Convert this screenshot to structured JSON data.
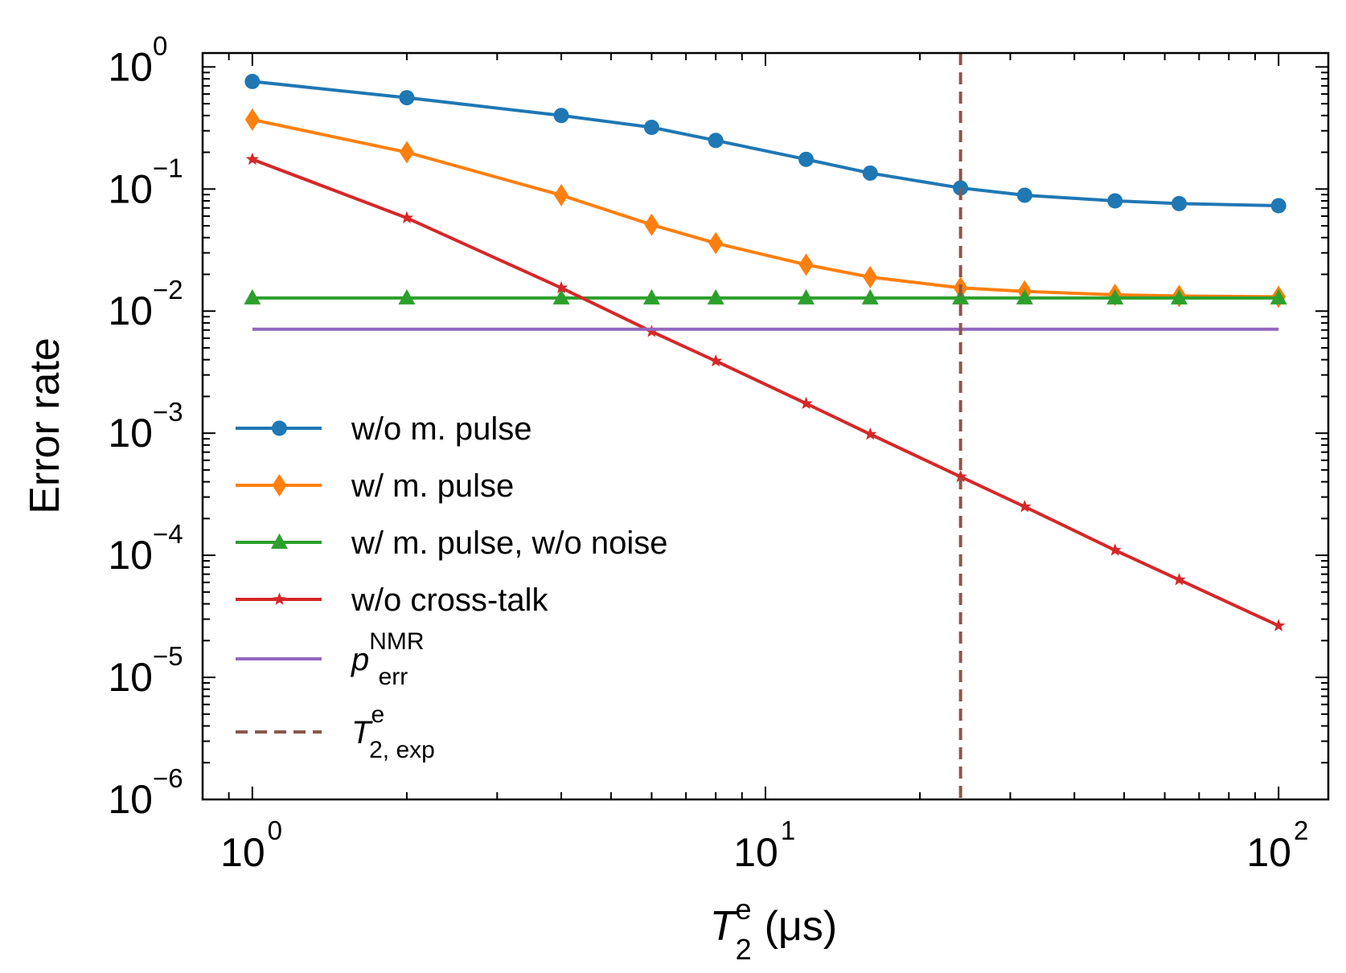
{
  "chart_data": {
    "type": "line",
    "xscale": "log",
    "yscale": "log",
    "xlim": [
      0.8,
      125
    ],
    "ylim": [
      1e-06,
      1.3
    ],
    "xlabel": {
      "symbol": "T",
      "sup": "e",
      "sub": "2",
      "unit": "(μs)"
    },
    "ylabel": "Error rate",
    "x_ticks": [
      {
        "value": 1,
        "base": "10",
        "exp": "0"
      },
      {
        "value": 10,
        "base": "10",
        "exp": "1"
      },
      {
        "value": 100,
        "base": "10",
        "exp": "2"
      }
    ],
    "y_ticks": [
      {
        "value": 1,
        "base": "10",
        "exp": "0"
      },
      {
        "value": 0.1,
        "base": "10",
        "exp": "−1"
      },
      {
        "value": 0.01,
        "base": "10",
        "exp": "−2"
      },
      {
        "value": 0.001,
        "base": "10",
        "exp": "−3"
      },
      {
        "value": 0.0001,
        "base": "10",
        "exp": "−4"
      },
      {
        "value": 1e-05,
        "base": "10",
        "exp": "−5"
      },
      {
        "value": 1e-06,
        "base": "10",
        "exp": "−6"
      }
    ],
    "x": [
      1,
      2,
      4,
      6,
      8,
      12,
      16,
      24,
      32,
      48,
      64,
      100
    ],
    "series": [
      {
        "name": "w/o m. pulse",
        "color": "#1f77b4",
        "marker": "circle",
        "values": [
          0.76,
          0.56,
          0.4,
          0.32,
          0.25,
          0.175,
          0.135,
          0.102,
          0.089,
          0.08,
          0.076,
          0.073
        ]
      },
      {
        "name": "w/ m. pulse",
        "color": "#ff7f0e",
        "marker": "diamond",
        "values": [
          0.37,
          0.2,
          0.089,
          0.051,
          0.036,
          0.024,
          0.019,
          0.0155,
          0.0145,
          0.0136,
          0.0133,
          0.0131
        ]
      },
      {
        "name": "w/ m. pulse, w/o noise",
        "color": "#2ca02c",
        "marker": "triangle",
        "values": [
          0.0128,
          0.0128,
          0.0128,
          0.0128,
          0.0128,
          0.0128,
          0.0128,
          0.0128,
          0.0128,
          0.0128,
          0.0128,
          0.0128
        ]
      },
      {
        "name": "w/o cross-talk",
        "color": "#d62728",
        "marker": "star",
        "values": [
          0.175,
          0.058,
          0.0155,
          0.0068,
          0.0039,
          0.00175,
          0.00098,
          0.00044,
          0.00025,
          0.00011,
          6.3e-05,
          2.65e-05
        ]
      },
      {
        "name": "p_err^NMR",
        "color": "#9467bd",
        "marker": "none",
        "x": [
          1,
          100
        ],
        "values": [
          0.0071,
          0.0071
        ]
      }
    ],
    "vline": {
      "name": "T_2,exp^e",
      "color": "#8c564b",
      "x": 24,
      "style": "dashed"
    },
    "legend": {
      "location": "center-left",
      "entries": [
        {
          "text": "w/o m. pulse"
        },
        {
          "text": "w/ m. pulse"
        },
        {
          "text": "w/ m. pulse, w/o noise"
        },
        {
          "text": "w/o cross-talk"
        },
        {
          "base": "p",
          "sup": "NMR",
          "sub": "err"
        },
        {
          "base": "T",
          "sup": "e",
          "sub": "2, exp"
        }
      ]
    }
  }
}
